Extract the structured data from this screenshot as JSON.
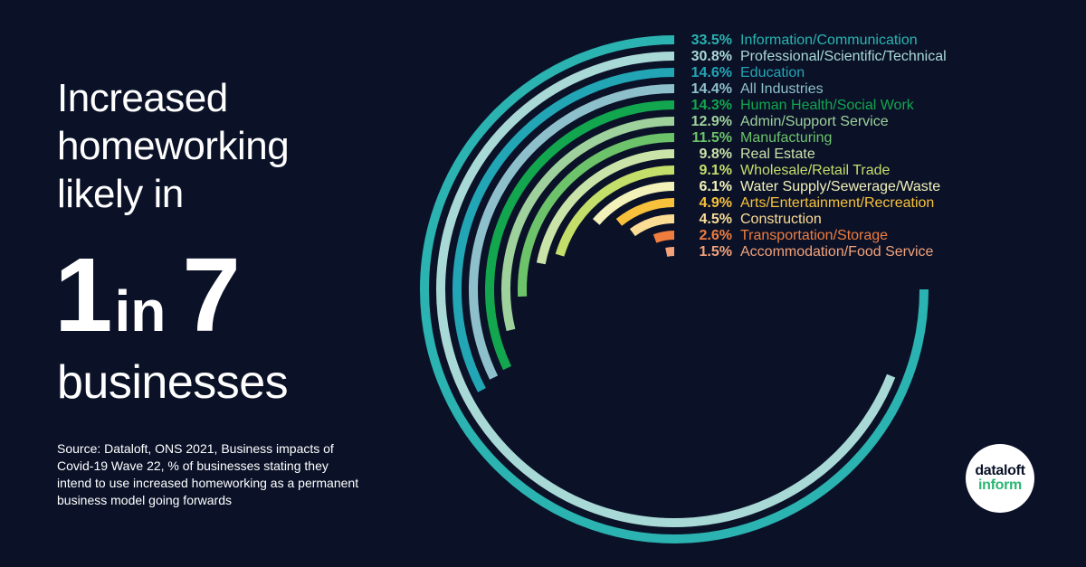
{
  "headline": {
    "line1": "Increased",
    "line2": "homeworking",
    "line3": "likely in",
    "big_num1": "1",
    "big_mid": "in",
    "big_num2": "7",
    "line_last": "businesses"
  },
  "source": "Source: Dataloft, ONS 2021, Business impacts of Covid-19 Wave 22, % of businesses stating they intend to use increased homeworking as a permanent business model going forwards",
  "logo": {
    "line1": "dataloft",
    "line2": "inform"
  },
  "chart_data": {
    "type": "radial-bar",
    "title": "",
    "max_value": 33.5,
    "unit": "%",
    "series": [
      {
        "name": "Information/Communication",
        "value": 33.5,
        "label": "33.5%",
        "color": "#2ab3b0"
      },
      {
        "name": "Professional/Scientific/Technical",
        "value": 30.8,
        "label": "30.8%",
        "color": "#a9d9d6"
      },
      {
        "name": "Education",
        "value": 14.6,
        "label": "14.6%",
        "color": "#22a5b4"
      },
      {
        "name": "All Industries",
        "value": 14.4,
        "label": "14.4%",
        "color": "#8ec0cb"
      },
      {
        "name": "Human Health/Social Work",
        "value": 14.3,
        "label": "14.3%",
        "color": "#12a64e"
      },
      {
        "name": "Admin/Support Service",
        "value": 12.9,
        "label": "12.9%",
        "color": "#9ed19b"
      },
      {
        "name": "Manufacturing",
        "value": 11.5,
        "label": "11.5%",
        "color": "#6cc36a"
      },
      {
        "name": "Real Estate",
        "value": 9.8,
        "label": "9.8%",
        "color": "#c9e3a8"
      },
      {
        "name": "Wholesale/Retail Trade",
        "value": 9.1,
        "label": "9.1%",
        "color": "#c4de6a"
      },
      {
        "name": "Water Supply/Sewerage/Waste",
        "value": 6.1,
        "label": "6.1%",
        "color": "#f2f1b9"
      },
      {
        "name": "Arts/Entertainment/Recreation",
        "value": 4.9,
        "label": "4.9%",
        "color": "#f7c13b"
      },
      {
        "name": "Construction",
        "value": 4.5,
        "label": "4.5%",
        "color": "#fbdc95"
      },
      {
        "name": "Transportation/Storage",
        "value": 2.6,
        "label": "2.6%",
        "color": "#f07d3e"
      },
      {
        "name": "Accommodation/Food Service",
        "value": 1.5,
        "label": "1.5%",
        "color": "#f3a27a"
      }
    ]
  }
}
